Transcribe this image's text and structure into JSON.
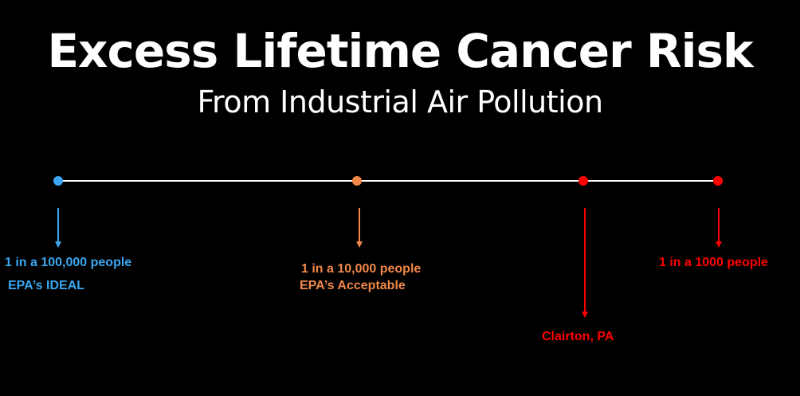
{
  "title": "Excess Lifetime Cancer Risk",
  "subtitle": "From Industrial Air Pollution",
  "colors": {
    "background": "#000000",
    "text": "#ffffff",
    "line": "#ffffff",
    "ideal": "#3ba7f0",
    "acceptable": "#f0884a",
    "high": "#ff0000"
  },
  "markers": [
    {
      "id": "ideal",
      "risk": "1 in a 100,000 people",
      "note": "EPA’s IDEAL"
    },
    {
      "id": "acceptable",
      "risk": "1 in a 10,000 people",
      "note": "EPA’s Acceptable"
    },
    {
      "id": "clairton",
      "risk": "",
      "note": "Clairton, PA"
    },
    {
      "id": "high",
      "risk": "1 in a 1000 people",
      "note": ""
    }
  ]
}
